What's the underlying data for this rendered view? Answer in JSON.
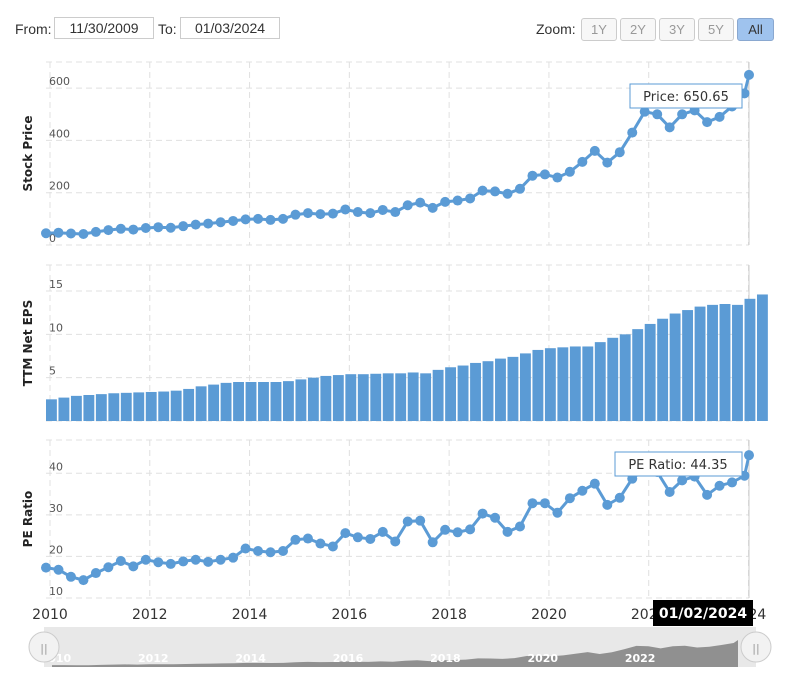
{
  "range_selector": {
    "from_label": "From:",
    "from_value": "11/30/2009",
    "to_label": "To:",
    "to_value": "01/03/2024",
    "zoom_label": "Zoom:",
    "zoom_buttons": [
      "1Y",
      "2Y",
      "3Y",
      "5Y",
      "All"
    ],
    "active_zoom": "All"
  },
  "tooltips": {
    "price": "Price: 650.65",
    "pe": "PE Ratio: 44.35",
    "date": "01/02/2024"
  },
  "colors": {
    "series": "#5b9bd5",
    "tooltip_border": "#5b9bd5",
    "date_flag_bg": "#000000",
    "navigator_fill": "#909090",
    "navigator_bg": "#e8e8e8"
  },
  "chart_data": [
    {
      "type": "line",
      "ylabel": "Stock Price",
      "ylim": [
        0,
        700
      ],
      "yticks": [
        0,
        200,
        400,
        600
      ],
      "xlim": [
        2009.92,
        2024.01
      ],
      "x": [
        2009.92,
        2010.17,
        2010.42,
        2010.67,
        2010.92,
        2011.17,
        2011.42,
        2011.67,
        2011.92,
        2012.17,
        2012.42,
        2012.67,
        2012.92,
        2013.17,
        2013.42,
        2013.67,
        2013.92,
        2014.17,
        2014.42,
        2014.67,
        2014.92,
        2015.17,
        2015.42,
        2015.67,
        2015.92,
        2016.17,
        2016.42,
        2016.67,
        2016.92,
        2017.17,
        2017.42,
        2017.67,
        2017.92,
        2018.17,
        2018.42,
        2018.67,
        2018.92,
        2019.17,
        2019.42,
        2019.67,
        2019.92,
        2020.17,
        2020.42,
        2020.67,
        2020.92,
        2021.17,
        2021.42,
        2021.67,
        2021.92,
        2022.17,
        2022.42,
        2022.67,
        2022.92,
        2023.17,
        2023.42,
        2023.67,
        2023.92,
        2024.01
      ],
      "series": [
        {
          "values": [
            45,
            47,
            44,
            42,
            50,
            57,
            62,
            59,
            65,
            68,
            66,
            72,
            78,
            82,
            87,
            92,
            98,
            100,
            96,
            100,
            116,
            122,
            118,
            120,
            136,
            126,
            122,
            134,
            126,
            152,
            162,
            142,
            165,
            170,
            178,
            208,
            205,
            196,
            215,
            265,
            270,
            258,
            280,
            318,
            360,
            315,
            355,
            430,
            510,
            500,
            450,
            500,
            515,
            470,
            490,
            530,
            580,
            650.65
          ]
        }
      ]
    },
    {
      "type": "bar",
      "ylabel": "TTM Net EPS",
      "ylim": [
        0,
        18
      ],
      "yticks": [
        0,
        5,
        10,
        15
      ],
      "xlim": [
        2009.92,
        2024.01
      ],
      "bar_start": 2009.92,
      "bar_step": 0.25,
      "series": [
        {
          "values": [
            2.5,
            2.7,
            2.9,
            3.0,
            3.1,
            3.2,
            3.25,
            3.3,
            3.35,
            3.4,
            3.5,
            3.7,
            4.0,
            4.2,
            4.4,
            4.5,
            4.5,
            4.5,
            4.5,
            4.6,
            4.8,
            5.0,
            5.2,
            5.3,
            5.4,
            5.4,
            5.45,
            5.5,
            5.5,
            5.6,
            5.5,
            5.9,
            6.2,
            6.4,
            6.7,
            6.9,
            7.2,
            7.4,
            7.8,
            8.2,
            8.4,
            8.5,
            8.6,
            8.6,
            9.1,
            9.6,
            10.0,
            10.6,
            11.2,
            11.8,
            12.4,
            12.8,
            13.2,
            13.4,
            13.5,
            13.4,
            14.1,
            14.6
          ]
        }
      ]
    },
    {
      "type": "line",
      "ylabel": "PE Ratio",
      "ylim": [
        10,
        48
      ],
      "yticks": [
        10,
        20,
        30,
        40
      ],
      "xlim": [
        2009.92,
        2024.01
      ],
      "x": [
        2009.92,
        2010.17,
        2010.42,
        2010.67,
        2010.92,
        2011.17,
        2011.42,
        2011.67,
        2011.92,
        2012.17,
        2012.42,
        2012.67,
        2012.92,
        2013.17,
        2013.42,
        2013.67,
        2013.92,
        2014.17,
        2014.42,
        2014.67,
        2014.92,
        2015.17,
        2015.42,
        2015.67,
        2015.92,
        2016.17,
        2016.42,
        2016.67,
        2016.92,
        2017.17,
        2017.42,
        2017.67,
        2017.92,
        2018.17,
        2018.42,
        2018.67,
        2018.92,
        2019.17,
        2019.42,
        2019.67,
        2019.92,
        2020.17,
        2020.42,
        2020.67,
        2020.92,
        2021.17,
        2021.42,
        2021.67,
        2021.92,
        2022.17,
        2022.42,
        2022.67,
        2022.92,
        2023.17,
        2023.42,
        2023.67,
        2023.92,
        2024.01
      ],
      "series": [
        {
          "values": [
            17.3,
            16.8,
            15.1,
            14.3,
            16.0,
            17.4,
            18.9,
            17.6,
            19.2,
            18.6,
            18.2,
            18.8,
            19.2,
            18.7,
            19.2,
            19.7,
            21.9,
            21.3,
            21.0,
            21.3,
            24.0,
            24.3,
            23.1,
            22.4,
            25.6,
            24.6,
            24.2,
            25.9,
            23.6,
            28.4,
            28.6,
            23.4,
            26.4,
            25.8,
            26.5,
            30.3,
            29.3,
            25.9,
            27.2,
            32.8,
            32.8,
            30.5,
            34.0,
            35.8,
            37.5,
            32.4,
            34.1,
            38.7,
            41.0,
            40.3,
            35.5,
            38.3,
            39.2,
            34.8,
            37.0,
            37.8,
            39.4,
            44.35
          ]
        }
      ]
    }
  ],
  "x_axis": {
    "ticks": [
      2010,
      2012,
      2014,
      2016,
      2018,
      2020,
      2022,
      2024
    ]
  },
  "navigator": {
    "tick_labels": [
      "2010",
      "2012",
      "2014",
      "2016",
      "2018",
      "2020",
      "2022"
    ],
    "handle_glyph": "||"
  }
}
